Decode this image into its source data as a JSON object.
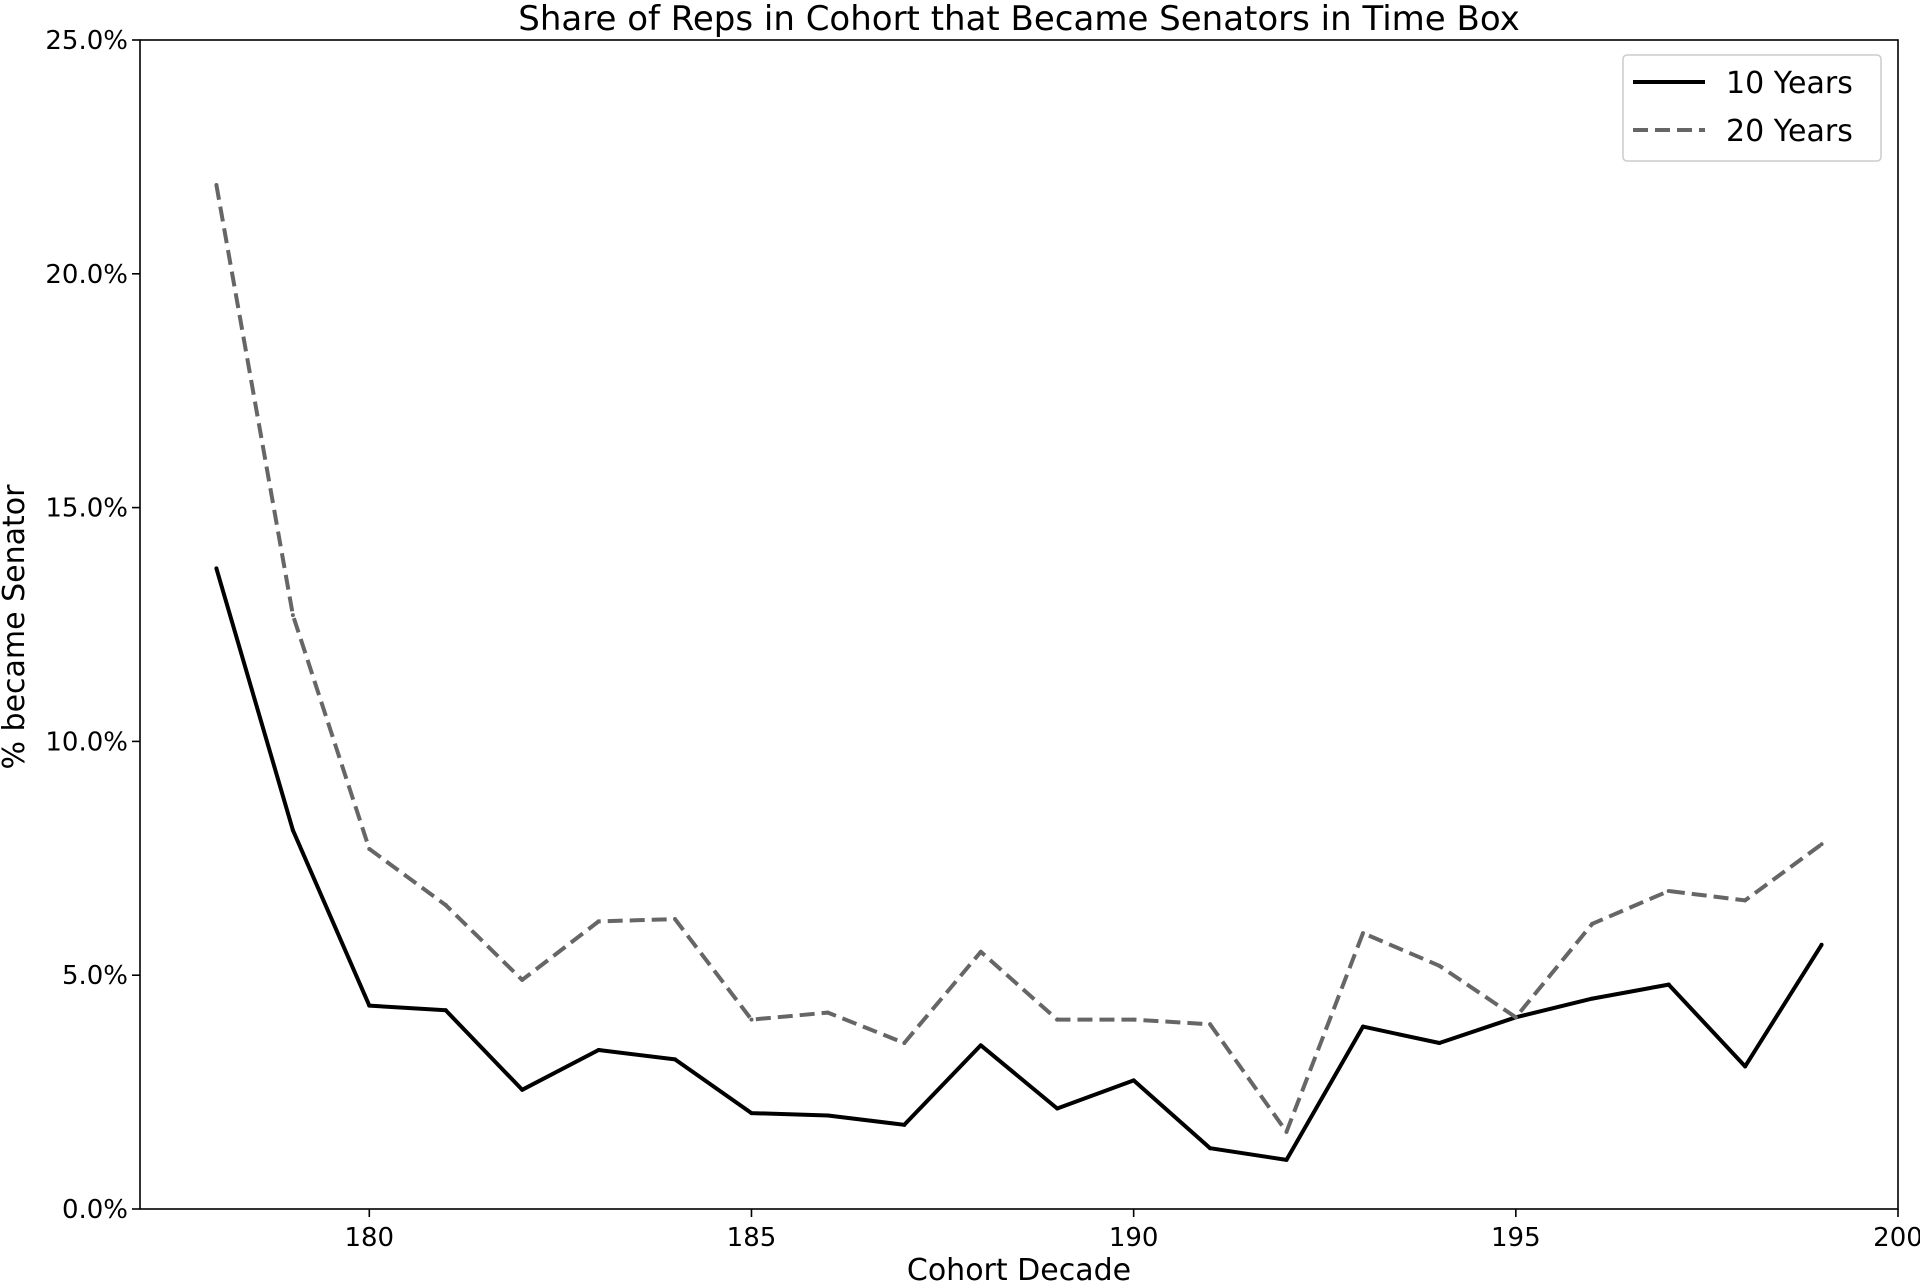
{
  "chart_data": {
    "type": "line",
    "title": "Share of Reps in Cohort that Became Senators in Time Box",
    "xlabel": "Cohort Decade",
    "ylabel": "% became Senator",
    "xlim": [
      177,
      200
    ],
    "ylim": [
      0,
      25
    ],
    "xticks": [
      180,
      185,
      190,
      195,
      200
    ],
    "yticks": [
      0,
      5,
      10,
      15,
      20,
      25
    ],
    "ytick_labels": [
      "0.0%",
      "5.0%",
      "10.0%",
      "15.0%",
      "20.0%",
      "25.0%"
    ],
    "grid": false,
    "legend_position": "top-right",
    "x": [
      178,
      179,
      180,
      181,
      182,
      183,
      184,
      185,
      186,
      187,
      188,
      189,
      190,
      191,
      192,
      193,
      194,
      195,
      196,
      197,
      198,
      199
    ],
    "series": [
      {
        "name": "10 Years",
        "color": "#000000",
        "style": "solid",
        "values": [
          13.7,
          8.1,
          4.35,
          4.25,
          2.55,
          3.4,
          3.2,
          2.05,
          2.0,
          1.8,
          3.5,
          2.15,
          2.75,
          1.3,
          1.05,
          3.9,
          3.55,
          4.1,
          4.5,
          4.8,
          3.05,
          5.65
        ]
      },
      {
        "name": "20 Years",
        "color": "#666666",
        "style": "dashed",
        "values": [
          21.9,
          12.7,
          7.7,
          6.5,
          4.9,
          6.15,
          6.2,
          4.05,
          4.2,
          3.55,
          5.5,
          4.05,
          4.05,
          3.95,
          1.65,
          5.9,
          5.2,
          4.1,
          6.1,
          6.8,
          6.6,
          7.8
        ]
      }
    ]
  }
}
